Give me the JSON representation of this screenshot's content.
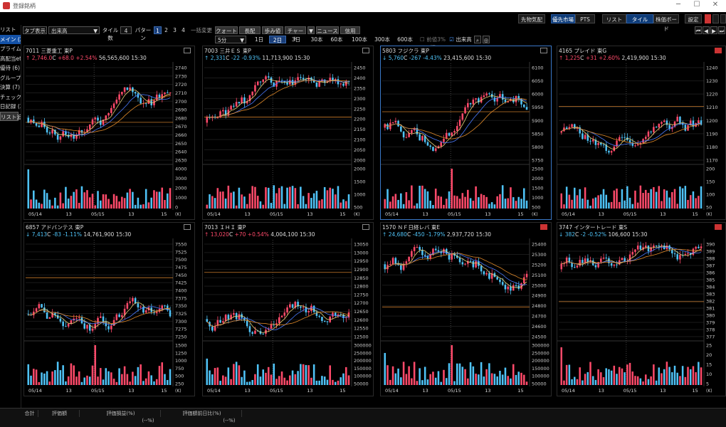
{
  "window": {
    "title": "登録銘柄"
  },
  "toolbar1": {
    "futures_label": "先物気配",
    "priority_market": "優先市場",
    "pts": "PTS",
    "list": "リスト",
    "tile": "タイル",
    "board": "株価ボード",
    "settings": "設定"
  },
  "toolbar2": {
    "tab_display": "タブ表示",
    "volume_select": "出来高",
    "tile_count_label": "タイル数",
    "tile_count": "4",
    "pattern_label": "パターン",
    "patterns": [
      "1",
      "2",
      "3",
      "4"
    ],
    "bulk_change": "一括変更",
    "quote": "クォート",
    "long_quote": "長配",
    "tick": "歩み値",
    "chart": "チャート",
    "news": "ニュース",
    "credit": "信用"
  },
  "toolbar3": {
    "interval_select": "5分",
    "periods": [
      "1日",
      "2日",
      "3日",
      "30本",
      "60本",
      "100本",
      "300本",
      "600本"
    ],
    "selected_period": "2日",
    "prev_close_label": "前値3%幅",
    "volume_label": "出来高"
  },
  "sidebar": {
    "items": [
      "リスト",
      "メイン (28)",
      "プライム (6)",
      "高配当etf",
      "優待 (6)",
      "グループ (3)",
      "決算 (7)",
      "チェック用 (",
      "日記録 (3)",
      "リスト追加"
    ]
  },
  "colors": {
    "up": "#ff4a6a",
    "down": "#4fc3f7",
    "ma1": "#e6d27a",
    "ma2": "#4a7bff",
    "ma3": "#e08a2a",
    "ref": "#c87a2a"
  },
  "tiles": [
    {
      "header": "7011 三菱重工 東P",
      "arrow": "↑",
      "price": "2,746.0",
      "unit": "C",
      "change": "+68.0 +2.54%",
      "volume": "56,565,600",
      "time": "15:30",
      "dir": "up",
      "price_axis": [
        "2740",
        "2730",
        "2720",
        "2710",
        "2700",
        "2690",
        "2680",
        "2670",
        "2660",
        "2650",
        "2640",
        "2630"
      ],
      "vol_axis": [
        "4000",
        "3000",
        "2000",
        "1000",
        "0"
      ],
      "vol_unit": "(K)",
      "dates": [
        "05/14",
        "13",
        "05/15",
        "13",
        "15"
      ]
    },
    {
      "header": "7003 三井ＥＳ 東P",
      "arrow": "↑",
      "price": "2,331",
      "unit": "C",
      "change": "-22 -0.93%",
      "volume": "11,713,900",
      "time": "15:30",
      "dir": "dn",
      "price_axis": [
        "2450",
        "2400",
        "2350",
        "2300",
        "2250",
        "2200",
        "2150",
        "2100",
        "2050",
        "2000"
      ],
      "vol_axis": [
        "2000",
        "1500",
        "1000",
        "500"
      ],
      "vol_unit": "(K)",
      "dates": [
        "05/14",
        "13",
        "05/15",
        "13",
        "15"
      ]
    },
    {
      "header": "5803 フジクラ 東P",
      "arrow": "↓",
      "price": "5,760",
      "unit": "C",
      "change": "-267 -4.43%",
      "volume": "23,415,600",
      "time": "15:30",
      "dir": "dn",
      "price_axis": [
        "6100",
        "6050",
        "6000",
        "5950",
        "5900",
        "5850",
        "5800",
        "5750"
      ],
      "vol_axis": [
        "2500",
        "2000",
        "1500",
        "1000",
        "500"
      ],
      "vol_unit": "(K)",
      "dates": [
        "05/14",
        "13",
        "05/15",
        "13",
        "15"
      ]
    },
    {
      "header": "4165 プレイド 東G",
      "arrow": "↑",
      "price": "1,225",
      "unit": "C",
      "change": "+31 +2.60%",
      "volume": "2,419,900",
      "time": "15:30",
      "dir": "up",
      "price_axis": [
        "1240",
        "1230",
        "1220",
        "1210",
        "1200",
        "1190",
        "1180",
        "1170"
      ],
      "vol_axis": [
        "200",
        "150",
        "100",
        "50"
      ],
      "vol_unit": "(K)",
      "dates": [
        "05/14",
        "13",
        "05/15",
        "13",
        "15"
      ]
    },
    {
      "header": "6857 アドバンテス 東P",
      "arrow": "↓",
      "price": "7,413",
      "unit": "C",
      "change": "-83 -1.11%",
      "volume": "14,761,900",
      "time": "15:30",
      "dir": "dn",
      "price_axis": [
        "7550",
        "7525",
        "7500",
        "7475",
        "7450",
        "7425",
        "7400",
        "7375",
        "7350",
        "7325",
        "7300",
        "7275",
        "7250"
      ],
      "vol_axis": [
        "1500",
        "1250",
        "1000",
        "750",
        "500",
        "250"
      ],
      "vol_unit": "(K)",
      "dates": [
        "05/14",
        "13",
        "05/15",
        "13",
        "15"
      ]
    },
    {
      "header": "7013 ＩＨＩ 東P",
      "arrow": "↑",
      "price": "13,020",
      "unit": "C",
      "change": "+70 +0.54%",
      "volume": "4,004,100",
      "time": "15:30",
      "dir": "up",
      "price_axis": [
        "13050",
        "13000",
        "12950",
        "12900",
        "12850",
        "12800",
        "12750",
        "12700",
        "12650",
        "12600",
        "12550",
        "12500"
      ],
      "vol_axis": [
        "300000",
        "250000",
        "200000",
        "150000",
        "100000",
        "50000"
      ],
      "vol_unit": "",
      "dates": [
        "05/14",
        "13",
        "05/15",
        "13",
        "15"
      ]
    },
    {
      "header": "1570 ＮＦ日経レバ 東E",
      "arrow": "↑",
      "price": "24,680",
      "unit": "C",
      "change": "-450 -1.79%",
      "volume": "2,937,720",
      "time": "15:30",
      "dir": "dn",
      "price_axis": [
        "25400",
        "25300",
        "25200",
        "25100",
        "25000",
        "24900",
        "24800",
        "24700",
        "24600",
        "24500"
      ],
      "vol_axis": [
        "300000",
        "250000",
        "200000",
        "150000",
        "100000",
        "50000"
      ],
      "vol_unit": "",
      "dates": [
        "05/14",
        "13",
        "05/15",
        "13",
        "15"
      ]
    },
    {
      "header": "3747 インタートレード 東S",
      "arrow": "↓",
      "price": "382",
      "unit": "C",
      "change": "-2 -0.52%",
      "volume": "106,600",
      "time": "15:30",
      "dir": "dn",
      "price_axis": [
        "390",
        "389",
        "388",
        "387",
        "386",
        "385",
        "384",
        "383",
        "382",
        "381",
        "380",
        "379",
        "378",
        "377"
      ],
      "vol_axis": [
        "25",
        "20",
        "15",
        "10",
        "5"
      ],
      "vol_unit": "(K)",
      "dates": [
        "05/14",
        "13",
        "05/15",
        "13",
        "15"
      ]
    }
  ],
  "bottom": {
    "total": "合計",
    "eval_amount": "評価額",
    "eval_pl": "評価損益(%)",
    "eval_day_ratio": "評価額前日比(%)",
    "pl_pct": "(--%)",
    "day_pct": "(--%)"
  }
}
